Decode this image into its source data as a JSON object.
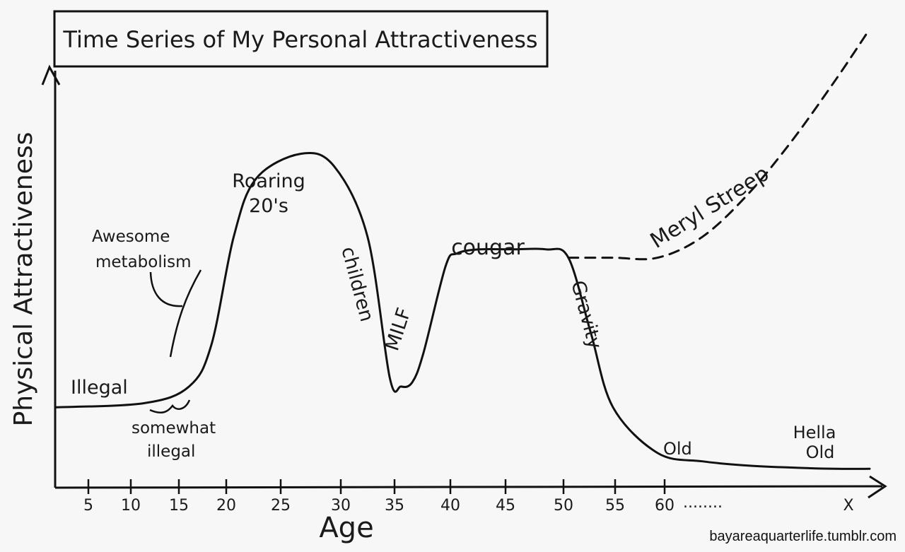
{
  "chart_data": {
    "type": "line",
    "title": "Time Series of My Personal Attractiveness",
    "xlabel": "Age",
    "ylabel": "Physical Attractiveness",
    "x_ticks": [
      "5",
      "10",
      "15",
      "20",
      "25",
      "30",
      "35",
      "40",
      "45",
      "50",
      "55",
      "60",
      "X"
    ],
    "x_tick_ellipsis": "........",
    "xlim": [
      2,
      75
    ],
    "ylim": [
      0,
      10
    ],
    "grid": false,
    "series": [
      {
        "style": "solid",
        "x": [
          2,
          10,
          14,
          16,
          18,
          20,
          24,
          27,
          30,
          32,
          33,
          34,
          35,
          37,
          38,
          40,
          43,
          46,
          48,
          50,
          52,
          56,
          60,
          64,
          68,
          72,
          75
        ],
        "y": [
          1.9,
          2.0,
          2.4,
          3.4,
          6.0,
          7.4,
          8.0,
          7.7,
          6.0,
          2.6,
          2.4,
          2.5,
          3.2,
          5.3,
          5.6,
          5.7,
          5.7,
          5.7,
          5.5,
          3.7,
          1.9,
          0.8,
          0.6,
          0.5,
          0.45,
          0.42,
          0.42
        ]
      },
      {
        "style": "dashed",
        "x": [
          48,
          52,
          56,
          60,
          64,
          68,
          72,
          75
        ],
        "y": [
          5.5,
          5.5,
          5.5,
          6.0,
          7.0,
          8.3,
          9.8,
          11.0
        ]
      }
    ],
    "annotations": [
      {
        "text": "Illegal"
      },
      {
        "text": "somewhat illegal"
      },
      {
        "text": "Awesome metabolism"
      },
      {
        "text": "Roaring 20's"
      },
      {
        "text": "children"
      },
      {
        "text": "MILF"
      },
      {
        "text": "cougar"
      },
      {
        "text": "Gravity"
      },
      {
        "text": "Meryl Streep"
      },
      {
        "text": "Old"
      },
      {
        "text": "Hella Old"
      }
    ]
  },
  "labels": {
    "illegal": "Illegal",
    "somewhat_1": "somewhat",
    "somewhat_2": "illegal",
    "awesome_1": "Awesome",
    "awesome_2": "metabolism",
    "roaring_1": "Roaring",
    "roaring_2": "20's",
    "children": "children",
    "milf": "MILF",
    "cougar": "cougar",
    "gravity": "Gravity",
    "meryl": "Meryl Streep",
    "old": "Old",
    "hella_1": "Hella",
    "hella_2": "Old"
  },
  "credit": "bayareaquarterlife.tumblr.com"
}
